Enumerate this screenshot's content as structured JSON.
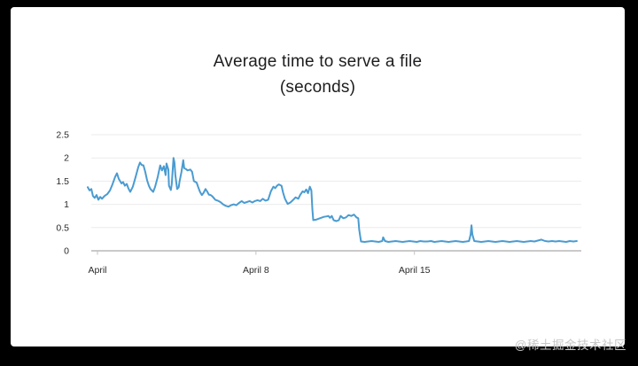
{
  "chart": {
    "title_line1": "Average time to serve a file",
    "title_line2": "(seconds)"
  },
  "watermark": {
    "text": "@稀土掘金技术社区"
  },
  "chart_data": {
    "type": "line",
    "title": "Average time to serve a file (seconds)",
    "xlabel": "",
    "ylabel": "",
    "ylim": [
      0,
      2.5
    ],
    "grid": "horizontal",
    "legend_position": "none",
    "line_color": "#4a9bd1",
    "gridline_color": "#ebebeb",
    "axis_line_color": "#c2c2c2",
    "label_color": "#2a2a2a",
    "y_ticks": [
      2.5,
      2,
      1.5,
      1,
      0.5,
      0
    ],
    "x_ticks": [
      {
        "day": 0,
        "label": "April"
      },
      {
        "day": 7,
        "label": "April 8"
      },
      {
        "day": 14,
        "label": "April 15"
      }
    ],
    "series": [
      {
        "name": "avg-time-to-serve-file-seconds",
        "points": [
          [
            -0.43,
            1.37
          ],
          [
            -0.35,
            1.3
          ],
          [
            -0.27,
            1.33
          ],
          [
            -0.2,
            1.18
          ],
          [
            -0.12,
            1.14
          ],
          [
            -0.04,
            1.2
          ],
          [
            0.04,
            1.1
          ],
          [
            0.12,
            1.16
          ],
          [
            0.2,
            1.12
          ],
          [
            0.31,
            1.18
          ],
          [
            0.43,
            1.22
          ],
          [
            0.55,
            1.3
          ],
          [
            0.66,
            1.43
          ],
          [
            0.78,
            1.59
          ],
          [
            0.86,
            1.67
          ],
          [
            0.94,
            1.55
          ],
          [
            1.06,
            1.45
          ],
          [
            1.13,
            1.48
          ],
          [
            1.21,
            1.4
          ],
          [
            1.29,
            1.44
          ],
          [
            1.37,
            1.34
          ],
          [
            1.45,
            1.27
          ],
          [
            1.56,
            1.38
          ],
          [
            1.68,
            1.58
          ],
          [
            1.8,
            1.8
          ],
          [
            1.88,
            1.9
          ],
          [
            1.95,
            1.85
          ],
          [
            2.03,
            1.84
          ],
          [
            2.11,
            1.7
          ],
          [
            2.19,
            1.52
          ],
          [
            2.27,
            1.4
          ],
          [
            2.34,
            1.33
          ],
          [
            2.46,
            1.27
          ],
          [
            2.54,
            1.37
          ],
          [
            2.66,
            1.59
          ],
          [
            2.77,
            1.84
          ],
          [
            2.85,
            1.73
          ],
          [
            2.93,
            1.82
          ],
          [
            3.01,
            1.63
          ],
          [
            3.05,
            1.88
          ],
          [
            3.13,
            1.75
          ],
          [
            3.16,
            1.4
          ],
          [
            3.24,
            1.31
          ],
          [
            3.28,
            1.43
          ],
          [
            3.36,
            2.0
          ],
          [
            3.4,
            1.9
          ],
          [
            3.44,
            1.63
          ],
          [
            3.52,
            1.33
          ],
          [
            3.59,
            1.37
          ],
          [
            3.63,
            1.5
          ],
          [
            3.71,
            1.7
          ],
          [
            3.79,
            1.95
          ],
          [
            3.83,
            1.78
          ],
          [
            3.91,
            1.76
          ],
          [
            3.98,
            1.73
          ],
          [
            4.1,
            1.75
          ],
          [
            4.18,
            1.7
          ],
          [
            4.26,
            1.5
          ],
          [
            4.38,
            1.47
          ],
          [
            4.45,
            1.37
          ],
          [
            4.53,
            1.27
          ],
          [
            4.61,
            1.2
          ],
          [
            4.69,
            1.25
          ],
          [
            4.77,
            1.33
          ],
          [
            4.84,
            1.28
          ],
          [
            4.92,
            1.21
          ],
          [
            5.0,
            1.2
          ],
          [
            5.08,
            1.17
          ],
          [
            5.2,
            1.1
          ],
          [
            5.31,
            1.08
          ],
          [
            5.43,
            1.05
          ],
          [
            5.55,
            1.0
          ],
          [
            5.66,
            0.97
          ],
          [
            5.78,
            0.95
          ],
          [
            5.9,
            0.98
          ],
          [
            6.02,
            1.0
          ],
          [
            6.13,
            0.98
          ],
          [
            6.25,
            1.03
          ],
          [
            6.37,
            1.07
          ],
          [
            6.48,
            1.03
          ],
          [
            6.6,
            1.05
          ],
          [
            6.72,
            1.07
          ],
          [
            6.84,
            1.04
          ],
          [
            6.95,
            1.07
          ],
          [
            7.07,
            1.09
          ],
          [
            7.19,
            1.07
          ],
          [
            7.3,
            1.12
          ],
          [
            7.42,
            1.08
          ],
          [
            7.54,
            1.1
          ],
          [
            7.66,
            1.28
          ],
          [
            7.77,
            1.38
          ],
          [
            7.85,
            1.35
          ],
          [
            7.93,
            1.4
          ],
          [
            8.01,
            1.43
          ],
          [
            8.13,
            1.4
          ],
          [
            8.2,
            1.25
          ],
          [
            8.28,
            1.12
          ],
          [
            8.4,
            1.01
          ],
          [
            8.52,
            1.04
          ],
          [
            8.63,
            1.09
          ],
          [
            8.75,
            1.15
          ],
          [
            8.87,
            1.12
          ],
          [
            8.95,
            1.2
          ],
          [
            9.06,
            1.28
          ],
          [
            9.14,
            1.26
          ],
          [
            9.22,
            1.32
          ],
          [
            9.3,
            1.24
          ],
          [
            9.38,
            1.38
          ],
          [
            9.45,
            1.3
          ],
          [
            9.49,
            0.9
          ],
          [
            9.53,
            0.66
          ],
          [
            9.65,
            0.67
          ],
          [
            9.77,
            0.69
          ],
          [
            9.88,
            0.71
          ],
          [
            10.0,
            0.73
          ],
          [
            10.12,
            0.74
          ],
          [
            10.2,
            0.75
          ],
          [
            10.27,
            0.71
          ],
          [
            10.35,
            0.75
          ],
          [
            10.43,
            0.66
          ],
          [
            10.55,
            0.64
          ],
          [
            10.66,
            0.66
          ],
          [
            10.74,
            0.75
          ],
          [
            10.86,
            0.7
          ],
          [
            10.98,
            0.72
          ],
          [
            11.09,
            0.77
          ],
          [
            11.21,
            0.75
          ],
          [
            11.33,
            0.78
          ],
          [
            11.44,
            0.72
          ],
          [
            11.52,
            0.7
          ],
          [
            11.56,
            0.45
          ],
          [
            11.64,
            0.2
          ],
          [
            11.8,
            0.19
          ],
          [
            11.95,
            0.2
          ],
          [
            12.11,
            0.21
          ],
          [
            12.27,
            0.2
          ],
          [
            12.42,
            0.19
          ],
          [
            12.58,
            0.21
          ],
          [
            12.62,
            0.29
          ],
          [
            12.7,
            0.21
          ],
          [
            12.85,
            0.19
          ],
          [
            13.01,
            0.2
          ],
          [
            13.17,
            0.21
          ],
          [
            13.32,
            0.2
          ],
          [
            13.48,
            0.19
          ],
          [
            13.63,
            0.2
          ],
          [
            13.79,
            0.21
          ],
          [
            13.95,
            0.2
          ],
          [
            14.1,
            0.19
          ],
          [
            14.26,
            0.21
          ],
          [
            14.41,
            0.2
          ],
          [
            14.57,
            0.2
          ],
          [
            14.73,
            0.21
          ],
          [
            14.88,
            0.19
          ],
          [
            15.04,
            0.2
          ],
          [
            15.2,
            0.21
          ],
          [
            15.35,
            0.2
          ],
          [
            15.51,
            0.19
          ],
          [
            15.66,
            0.2
          ],
          [
            15.82,
            0.21
          ],
          [
            15.98,
            0.2
          ],
          [
            16.13,
            0.19
          ],
          [
            16.29,
            0.2
          ],
          [
            16.41,
            0.21
          ],
          [
            16.48,
            0.35
          ],
          [
            16.52,
            0.55
          ],
          [
            16.56,
            0.35
          ],
          [
            16.64,
            0.21
          ],
          [
            16.8,
            0.2
          ],
          [
            16.95,
            0.19
          ],
          [
            17.11,
            0.2
          ],
          [
            17.27,
            0.21
          ],
          [
            17.42,
            0.2
          ],
          [
            17.58,
            0.19
          ],
          [
            17.73,
            0.2
          ],
          [
            17.89,
            0.21
          ],
          [
            18.05,
            0.2
          ],
          [
            18.2,
            0.19
          ],
          [
            18.36,
            0.2
          ],
          [
            18.52,
            0.21
          ],
          [
            18.67,
            0.2
          ],
          [
            18.83,
            0.19
          ],
          [
            18.98,
            0.2
          ],
          [
            19.14,
            0.21
          ],
          [
            19.3,
            0.2
          ],
          [
            19.45,
            0.22
          ],
          [
            19.61,
            0.24
          ],
          [
            19.77,
            0.21
          ],
          [
            19.92,
            0.2
          ],
          [
            20.08,
            0.21
          ],
          [
            20.23,
            0.2
          ],
          [
            20.39,
            0.21
          ],
          [
            20.55,
            0.2
          ],
          [
            20.7,
            0.19
          ],
          [
            20.86,
            0.21
          ],
          [
            21.02,
            0.2
          ],
          [
            21.17,
            0.21
          ]
        ]
      }
    ]
  }
}
